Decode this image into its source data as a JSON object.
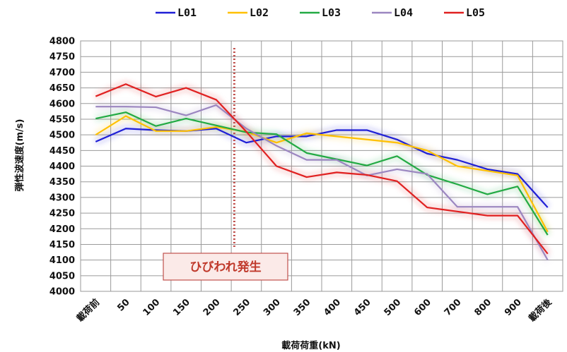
{
  "chart_data": {
    "type": "line",
    "xlabel": "載荷荷重(kN)",
    "ylabel": "弾性波速度(m/s)",
    "ylim": [
      4000,
      4800
    ],
    "yticks": [
      4000,
      4050,
      4100,
      4150,
      4200,
      4250,
      4300,
      4350,
      4400,
      4450,
      4500,
      4550,
      4600,
      4650,
      4700,
      4750,
      4800
    ],
    "categories": [
      "載荷前",
      "50",
      "100",
      "150",
      "200",
      "250",
      "300",
      "350",
      "400",
      "450",
      "500",
      "600",
      "700",
      "800",
      "900",
      "載荷後"
    ],
    "grid": true,
    "legend_position": "top",
    "annotation": {
      "label": "ひびわれ発生",
      "x_value": 230,
      "line_style": "dotted",
      "color": "#c0504d"
    },
    "series": [
      {
        "name": "L01",
        "color": "#1f1fd6",
        "values": [
          4478,
          4520,
          4515,
          4512,
          4520,
          4475,
          4495,
          4495,
          4515,
          4515,
          4485,
          4440,
          4420,
          4390,
          4375,
          4268
        ]
      },
      {
        "name": "L02",
        "color": "#ffc000",
        "values": [
          4500,
          4560,
          4512,
          4512,
          4525,
          4510,
          4475,
          4505,
          4495,
          4485,
          4475,
          4450,
          4400,
          4385,
          4370,
          4190
        ]
      },
      {
        "name": "L03",
        "color": "#22aa44",
        "values": [
          4552,
          4572,
          4528,
          4552,
          4530,
          4508,
          4502,
          4442,
          4422,
          4402,
          4432,
          4372,
          4342,
          4310,
          4335,
          4180
        ]
      },
      {
        "name": "L04",
        "color": "#9b86c0",
        "values": [
          4590,
          4590,
          4588,
          4562,
          4595,
          4520,
          4465,
          4420,
          4420,
          4370,
          4390,
          4375,
          4270,
          4270,
          4270,
          4100
        ]
      },
      {
        "name": "L05",
        "color": "#e02020",
        "values": [
          4623,
          4662,
          4622,
          4650,
          4612,
          4510,
          4400,
          4365,
          4380,
          4372,
          4352,
          4268,
          4255,
          4242,
          4242,
          4120
        ]
      }
    ]
  }
}
